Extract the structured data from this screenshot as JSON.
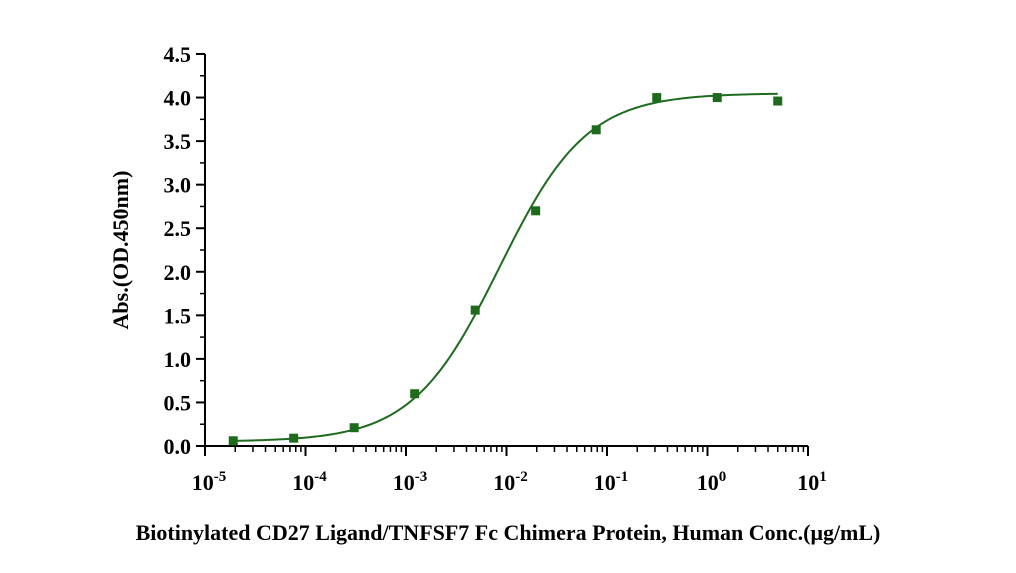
{
  "chart_data": {
    "type": "scatter",
    "title": "",
    "xlabel": "Biotinylated CD27 Ligand/TNFSF7 Fc Chimera Protein, Human Conc.(μg/mL)",
    "ylabel": "Abs.(OD.450nm)",
    "xscale": "log",
    "xlim": [
      1e-05,
      10
    ],
    "ylim": [
      0,
      4.5
    ],
    "x_ticks": [
      {
        "base": "10",
        "exp": "-5"
      },
      {
        "base": "10",
        "exp": "-4"
      },
      {
        "base": "10",
        "exp": "-3"
      },
      {
        "base": "10",
        "exp": "-2"
      },
      {
        "base": "10",
        "exp": "-1"
      },
      {
        "base": "10",
        "exp": "0"
      },
      {
        "base": "10",
        "exp": "1"
      }
    ],
    "y_ticks": [
      "0.0",
      "0.5",
      "1.0",
      "1.5",
      "2.0",
      "2.5",
      "3.0",
      "3.5",
      "4.0",
      "4.5"
    ],
    "series": [
      {
        "name": "Biotinylated CD27 Ligand/TNFSF7 Fc Chimera Protein, Human",
        "color": "#1e6b1e",
        "marker": "square",
        "x": [
          1.91e-05,
          7.63e-05,
          0.000305,
          0.00122,
          0.00488,
          0.0195,
          0.0781,
          0.3125,
          1.25,
          5
        ],
        "y": [
          0.06,
          0.09,
          0.21,
          0.6,
          1.56,
          2.7,
          3.63,
          4.0,
          4.0,
          3.96
        ]
      }
    ],
    "fit": {
      "type": "4PL",
      "bottom": 0.05,
      "top": 4.05,
      "ec50": 0.0085,
      "hill": 1.0,
      "color": "#1e6b1e"
    }
  }
}
